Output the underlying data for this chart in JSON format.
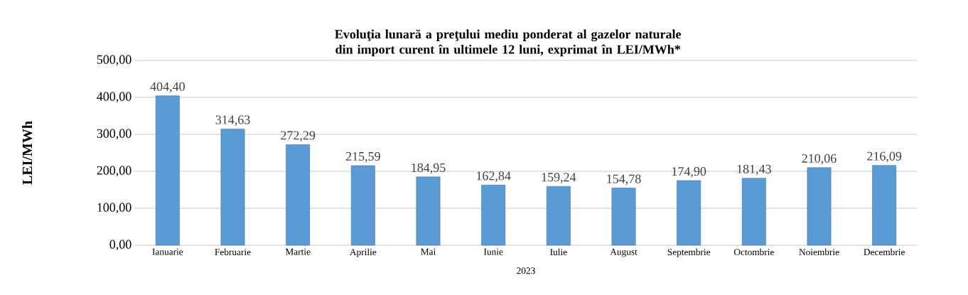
{
  "chart_data": {
    "type": "bar",
    "title": "Evoluţia lunară a preţului mediu ponderat al gazelor naturale din import curent în ultimele 12 luni, exprimat în LEI/MWh*",
    "xlabel": "2023",
    "ylabel": "LEI/MWh",
    "categories": [
      "Ianuarie",
      "Februarie",
      "Martie",
      "Aprilie",
      "Mai",
      "Iunie",
      "Iulie",
      "August",
      "Septembrie",
      "Octombrie",
      "Noiembrie",
      "Decembrie"
    ],
    "values": [
      404.4,
      314.63,
      272.29,
      215.59,
      184.95,
      162.84,
      159.24,
      154.78,
      174.9,
      181.43,
      210.06,
      216.09
    ],
    "value_labels": [
      "404,40",
      "314,63",
      "272,29",
      "215,59",
      "184,95",
      "162,84",
      "159,24",
      "154,78",
      "174,90",
      "181,43",
      "210,06",
      "216,09"
    ],
    "color": "#5b9bd5",
    "ylim": [
      0,
      500
    ],
    "yticks": [
      {
        "value": 0,
        "label": "0,00"
      },
      {
        "value": 100,
        "label": "100,00"
      },
      {
        "value": 200,
        "label": "200,00"
      },
      {
        "value": 300,
        "label": "300,00"
      },
      {
        "value": 400,
        "label": "400,00"
      },
      {
        "value": 500,
        "label": "500,00"
      }
    ],
    "grid": "y"
  }
}
